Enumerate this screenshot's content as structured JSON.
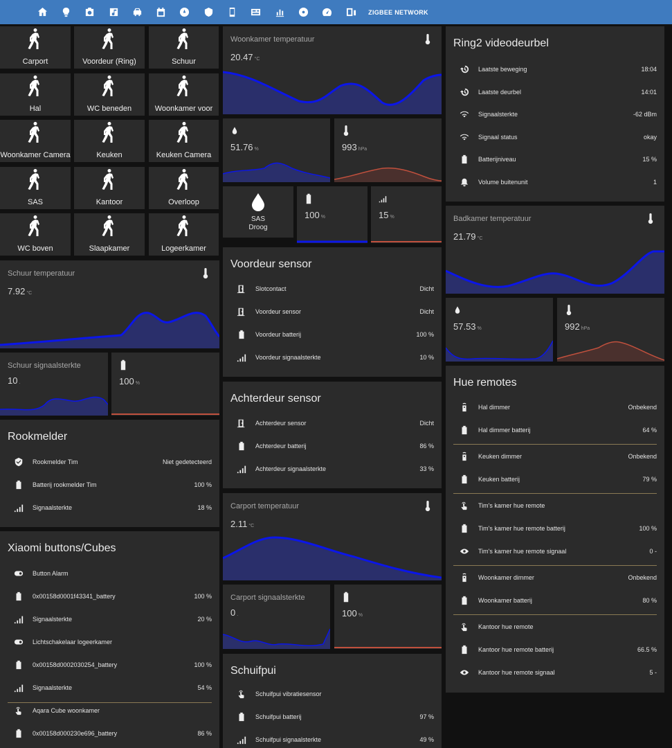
{
  "nav": {
    "tabs": [
      "home-icon",
      "lightbulb-icon",
      "camera-icon",
      "music-icon",
      "car-icon",
      "calendar-icon",
      "gauge-circle-icon",
      "security-icon",
      "phone-icon",
      "newspaper-icon",
      "chart-bar-icon",
      "disc-icon",
      "speedometer-icon",
      "phone-link-icon"
    ],
    "zigbee_label": "ZIGBEE NETWORK"
  },
  "colors": {
    "topbar": "#3f7bbf",
    "card": "#2b2b2b",
    "line_blue": "#0b16e8",
    "fill_blue": "#2a2f6b",
    "line_red": "#c0503d",
    "fill_red": "#4a302d"
  },
  "motion": [
    "Carport",
    "Voordeur (Ring)",
    "Schuur",
    "Hal",
    "WC beneden",
    "Woonkamer voor",
    "Woonkamer Camera",
    "Keuken",
    "Keuken Camera",
    "SAS",
    "Kantoor",
    "Overloop",
    "WC boven",
    "Slaapkamer",
    "Logeerkamer"
  ],
  "graphs": {
    "schuur_temp": {
      "title": "Schuur temperatuur",
      "value": "7.92",
      "unit": "°C"
    },
    "schuur_signal": {
      "title": "Schuur signaalsterkte",
      "value": "10",
      "unit": "."
    },
    "schuur_batt": {
      "value": "100",
      "unit": "%"
    },
    "woonkamer_temp": {
      "title": "Woonkamer temperatuur",
      "value": "20.47",
      "unit": "°C"
    },
    "woonkamer_hum": {
      "value": "51.76",
      "unit": "%"
    },
    "woonkamer_press": {
      "value": "993",
      "unit": "hPa"
    },
    "sas_batt": {
      "value": "100",
      "unit": "%"
    },
    "sas_signal": {
      "value": "15",
      "unit": "%"
    },
    "carport_temp": {
      "title": "Carport temperatuur",
      "value": "2.11",
      "unit": "°C"
    },
    "carport_signal": {
      "title": "Carport signaalsterkte",
      "value": "0",
      "unit": "."
    },
    "carport_batt": {
      "value": "100",
      "unit": "%"
    },
    "badkamer_temp": {
      "title": "Badkamer temperatuur",
      "value": "21.79",
      "unit": "°C"
    },
    "badkamer_hum": {
      "value": "57.53",
      "unit": "%"
    },
    "badkamer_press": {
      "value": "992",
      "unit": "hPa"
    }
  },
  "sas": {
    "name": "SAS",
    "state": "Droog"
  },
  "rookmelder": {
    "title": "Rookmelder",
    "rows": [
      {
        "icon": "shield-check-icon",
        "name": "Rookmelder Tim",
        "value": "Niet gedetecteerd"
      },
      {
        "icon": "battery-icon",
        "name": "Batterij rookmelder Tim",
        "value": "100 %"
      },
      {
        "icon": "signal-icon",
        "name": "Signaalsterkte",
        "value": "18 %"
      }
    ]
  },
  "xiaomi": {
    "title": "Xiaomi buttons/Cubes",
    "rows": [
      {
        "icon": "toggle-icon",
        "name": "Button Alarm",
        "value": ""
      },
      {
        "icon": "battery-icon",
        "name": "0x00158d0001f43341_battery",
        "value": "100 %"
      },
      {
        "icon": "signal-icon",
        "name": "Signaalsterkte",
        "value": "20 %"
      },
      {
        "icon": "toggle-icon",
        "name": "Lichtschakelaar logeerkamer",
        "value": ""
      },
      {
        "icon": "battery-icon",
        "name": "0x00158d0002030254_battery",
        "value": "100 %"
      },
      {
        "icon": "signal-icon",
        "name": "Signaalsterkte",
        "value": "54 %"
      },
      {
        "icon": "touch-icon",
        "name": "Aqara Cube woonkamer",
        "value": ""
      },
      {
        "icon": "battery-icon",
        "name": "0x00158d000230e696_battery",
        "value": "86 %"
      }
    ]
  },
  "voordeur": {
    "title": "Voordeur sensor",
    "rows": [
      {
        "icon": "door-icon",
        "name": "Slotcontact",
        "value": "Dicht"
      },
      {
        "icon": "door-icon",
        "name": "Voordeur sensor",
        "value": "Dicht"
      },
      {
        "icon": "battery-icon",
        "name": "Voordeur batterij",
        "value": "100 %"
      },
      {
        "icon": "signal-icon",
        "name": "Voordeur signaalsterkte",
        "value": "10 %"
      }
    ]
  },
  "achterdeur": {
    "title": "Achterdeur sensor",
    "rows": [
      {
        "icon": "door-icon",
        "name": "Achterdeur sensor",
        "value": "Dicht"
      },
      {
        "icon": "battery-icon",
        "name": "Achterdeur batterij",
        "value": "86 %"
      },
      {
        "icon": "signal-icon",
        "name": "Achterdeur signaalsterkte",
        "value": "33 %"
      }
    ]
  },
  "schuifpui": {
    "title": "Schuifpui",
    "rows": [
      {
        "icon": "touch-icon",
        "name": "Schuifpui vibratiesensor",
        "value": ""
      },
      {
        "icon": "battery-icon",
        "name": "Schuifpui batterij",
        "value": "97 %"
      },
      {
        "icon": "signal-icon",
        "name": "Schuifpui signaalsterkte",
        "value": "49 %"
      }
    ]
  },
  "ring": {
    "title": "Ring2 videodeurbel",
    "rows": [
      {
        "icon": "history-icon",
        "name": "Laatste beweging",
        "value": "18:04"
      },
      {
        "icon": "history-icon",
        "name": "Laatste deurbel",
        "value": "14:01"
      },
      {
        "icon": "wifi-icon",
        "name": "Signaalsterkte",
        "value": "-62 dBm"
      },
      {
        "icon": "wifi-icon",
        "name": "Signaal status",
        "value": "okay"
      },
      {
        "icon": "battery-icon",
        "name": "Batterijniveau",
        "value": "15 %"
      },
      {
        "icon": "bell-ring-icon",
        "name": "Volume buitenunit",
        "value": "1"
      }
    ]
  },
  "hue": {
    "title": "Hue remotes",
    "rows": [
      {
        "icon": "remote-icon",
        "name": "Hal dimmer",
        "value": "Onbekend"
      },
      {
        "icon": "battery-icon",
        "name": "Hal dimmer batterij",
        "value": "64 %"
      },
      {
        "icon": "remote-icon",
        "name": "Keuken dimmer",
        "value": "Onbekend"
      },
      {
        "icon": "battery-icon",
        "name": "Keuken batterij",
        "value": "79 %"
      },
      {
        "icon": "touch-icon",
        "name": "Tim's kamer hue remote",
        "value": ""
      },
      {
        "icon": "battery-icon",
        "name": "Tim's kamer hue remote batterij",
        "value": "100 %"
      },
      {
        "icon": "eye-icon",
        "name": "Tim's kamer hue remote signaal",
        "value": "0 -"
      },
      {
        "icon": "remote-icon",
        "name": "Woonkamer dimmer",
        "value": "Onbekend"
      },
      {
        "icon": "battery-icon",
        "name": "Woonkamer batterij",
        "value": "80 %"
      },
      {
        "icon": "touch-icon",
        "name": "Kantoor hue remote",
        "value": ""
      },
      {
        "icon": "battery-icon",
        "name": "Kantoor hue remote batterij",
        "value": "66.5 %"
      },
      {
        "icon": "eye-icon",
        "name": "Kantoor hue remote signaal",
        "value": "5 -"
      }
    ]
  }
}
